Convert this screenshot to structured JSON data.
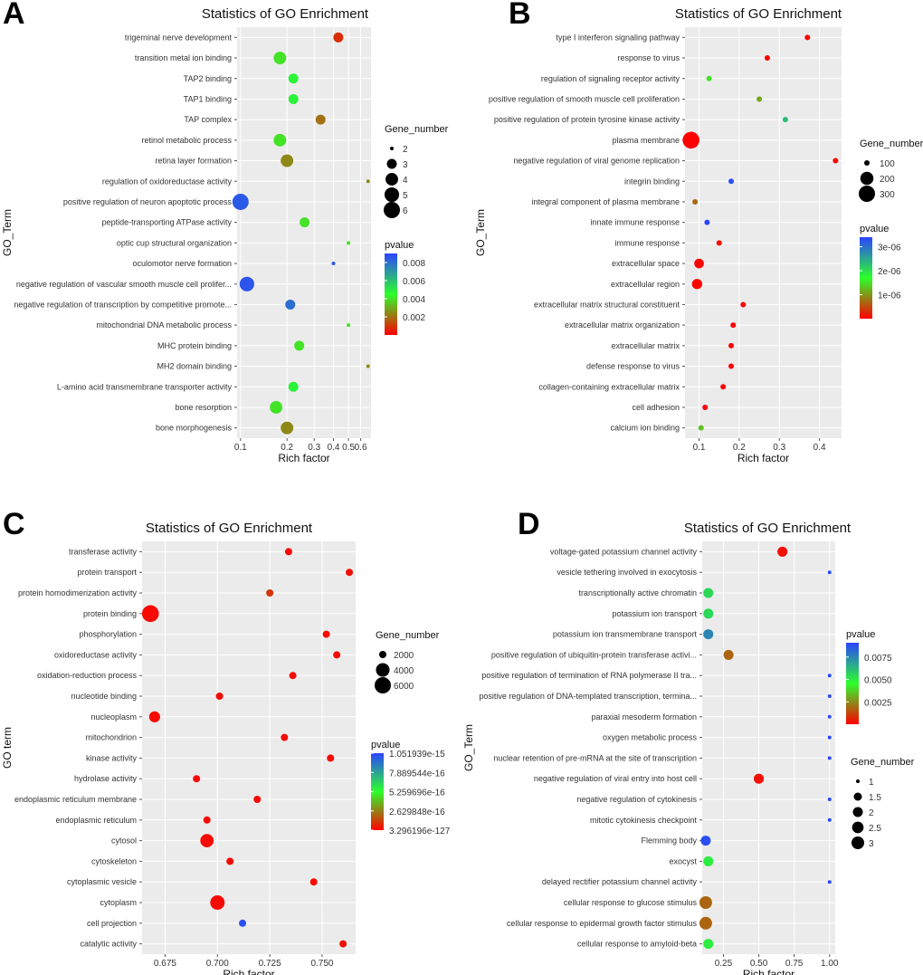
{
  "colors": {
    "panel_bg": "#ebebeb",
    "grid": "#ffffff",
    "low_p": "#ff0000",
    "mid_p": "#2bff2b",
    "high_p": "#2b44ff"
  },
  "chart_data": [
    {
      "type": "scatter",
      "panel": "A",
      "title": "Statistics of GO Enrichment",
      "xlabel": "Rich factor",
      "ylabel": "GO_Term",
      "xscale": "log",
      "xlim": [
        0.095,
        0.7
      ],
      "xticks": [
        "0.1",
        "0.2",
        "0.3",
        "0.4",
        "0.5",
        "0.6"
      ],
      "xtick_values": [
        0.1,
        0.2,
        0.3,
        0.4,
        0.5,
        0.6
      ],
      "size_legend_title": "Gene_number",
      "size_legend": [
        2,
        3,
        4,
        5,
        6
      ],
      "color_legend_title": "pvalue",
      "color_legend_labels": [
        "0.008",
        "0.006",
        "0.004",
        "0.002"
      ],
      "color_legend_values": [
        0.008,
        0.006,
        0.004,
        0.002
      ],
      "color_range": [
        0.0,
        0.009
      ],
      "terms": [
        "trigeminal nerve development",
        "transition metal ion binding",
        "TAP2 binding",
        "TAP1 binding",
        "TAP complex",
        "retinol metabolic process",
        "retina layer formation",
        "regulation of oxidoreductase activity",
        "positive regulation of neuron apoptotic process",
        "peptide-transporting ATPase activity",
        "optic cup structural organization",
        "oculomotor nerve formation",
        "negative regulation of vascular smooth muscle cell prolifer...",
        "negative regulation of transcription by competitive promote...",
        "mitochondrial DNA metabolic process",
        "MHC protein binding",
        "MH2 domain binding",
        "L-amino acid transmembrane transporter activity",
        "bone resorption",
        "bone morphogenesis"
      ],
      "x": [
        0.43,
        0.18,
        0.22,
        0.22,
        0.33,
        0.18,
        0.2,
        0.67,
        0.1,
        0.26,
        0.5,
        0.4,
        0.11,
        0.21,
        0.5,
        0.24,
        0.67,
        0.22,
        0.17,
        0.2
      ],
      "gene_number": [
        3,
        4,
        3,
        3,
        3,
        4,
        4,
        1,
        6,
        3,
        1,
        1,
        5,
        3,
        1,
        3,
        1,
        3,
        4,
        4
      ],
      "pvalue": [
        0.0008,
        0.004,
        0.0048,
        0.0048,
        0.002,
        0.004,
        0.0024,
        0.0024,
        0.0085,
        0.004,
        0.004,
        0.0085,
        0.0086,
        0.008,
        0.004,
        0.004,
        0.0024,
        0.0048,
        0.004,
        0.0024
      ]
    },
    {
      "type": "scatter",
      "panel": "B",
      "title": "Statistics of GO Enrichment",
      "xlabel": "Rich factor",
      "ylabel": "GO_Term",
      "xscale": "linear",
      "xlim": [
        0.065,
        0.455
      ],
      "xticks": [
        "0.1",
        "0.2",
        "0.3",
        "0.4"
      ],
      "xtick_values": [
        0.1,
        0.2,
        0.3,
        0.4
      ],
      "size_legend_title": "Gene_number",
      "size_legend": [
        100,
        200,
        300
      ],
      "color_legend_title": "pvalue",
      "color_legend_labels": [
        "3e-06",
        "2e-06",
        "1e-06"
      ],
      "color_legend_values": [
        3e-06,
        2e-06,
        1e-06
      ],
      "color_range": [
        0.0,
        3.4e-06
      ],
      "terms": [
        "type I interferon signaling pathway",
        "response to virus",
        "regulation of signaling receptor activity",
        "positive regulation of smooth muscle cell proliferation",
        "positive regulation of protein tyrosine kinase activity",
        "plasma membrane",
        "negative regulation of viral genome replication",
        "integrin binding",
        "integral component of plasma membrane",
        "innate immune response",
        "immune response",
        "extracellular space",
        "extracellular region",
        "extracellular matrix structural constituent",
        "extracellular matrix organization",
        "extracellular matrix",
        "defense response to virus",
        "collagen-containing extracellular matrix",
        "cell adhesion",
        "calcium ion binding"
      ],
      "x": [
        0.37,
        0.27,
        0.125,
        0.25,
        0.315,
        0.08,
        0.44,
        0.18,
        0.09,
        0.12,
        0.15,
        0.1,
        0.095,
        0.21,
        0.185,
        0.18,
        0.18,
        0.16,
        0.115,
        0.105
      ],
      "gene_number": [
        30,
        40,
        40,
        25,
        20,
        320,
        25,
        40,
        100,
        60,
        50,
        130,
        140,
        40,
        60,
        50,
        40,
        60,
        60,
        70
      ],
      "pvalue": [
        1e-08,
        1e-08,
        1.5e-06,
        1.1e-06,
        2.3e-06,
        1e-08,
        1e-08,
        3.3e-06,
        7e-07,
        3.4e-06,
        1e-08,
        1e-08,
        1e-08,
        1e-08,
        1e-08,
        1e-08,
        1e-08,
        1e-08,
        1e-08,
        1.3e-06
      ]
    },
    {
      "type": "scatter",
      "panel": "C",
      "title": "Statistics of GO Enrichment",
      "xlabel": "Rich factor",
      "ylabel": "GO term",
      "xscale": "linear",
      "xlim": [
        0.664,
        0.766
      ],
      "xticks": [
        "0.675",
        "0.700",
        "0.725",
        "0.750"
      ],
      "xtick_values": [
        0.675,
        0.7,
        0.725,
        0.75
      ],
      "size_legend_title": "Gene_number",
      "size_legend": [
        2000,
        4000,
        6000
      ],
      "color_legend_title": "pvalue",
      "color_legend_labels": [
        "1.051939e-15",
        "7.889544e-16",
        "5.259696e-16",
        "2.629848e-16",
        "3.296196e-127"
      ],
      "color_legend_values": [
        1.0,
        0.75,
        0.5,
        0.25,
        0.0
      ],
      "color_range": [
        0.0,
        1.0
      ],
      "terms": [
        "transferase activity",
        "protein transport",
        "protein homodimerization activity",
        "protein binding",
        "phosphorylation",
        "oxidoreductase activity",
        "oxidation-reduction process",
        "nucleotide binding",
        "nucleoplasm",
        "mitochondrion",
        "kinase activity",
        "hydrolase activity",
        "endoplasmic reticulum membrane",
        "endoplasmic reticulum",
        "cytosol",
        "cytoskeleton",
        "cytoplasmic vesicle",
        "cytoplasm",
        "cell projection",
        "catalytic activity"
      ],
      "x": [
        0.734,
        0.763,
        0.725,
        0.668,
        0.752,
        0.757,
        0.736,
        0.701,
        0.67,
        0.732,
        0.754,
        0.69,
        0.719,
        0.695,
        0.695,
        0.706,
        0.746,
        0.7,
        0.712,
        0.76
      ],
      "gene_number": [
        1600,
        900,
        900,
        6500,
        900,
        700,
        900,
        1600,
        2700,
        1600,
        800,
        1600,
        1100,
        1400,
        3800,
        1200,
        800,
        4500,
        900,
        500
      ],
      "pvalue": [
        0.02,
        0.03,
        0.1,
        0.02,
        0.02,
        0.02,
        0.02,
        0.02,
        0.02,
        0.02,
        0.02,
        0.02,
        0.02,
        0.02,
        0.02,
        0.02,
        0.02,
        0.02,
        0.97,
        0.02
      ]
    },
    {
      "type": "scatter",
      "panel": "D",
      "title": "Statistics of GO Enrichment",
      "xlabel": "Rich factor",
      "ylabel": "GO_Term",
      "xscale": "linear",
      "xlim": [
        0.1,
        1.04
      ],
      "xticks": [
        "0.25",
        "0.50",
        "0.75",
        "1.00"
      ],
      "xtick_values": [
        0.25,
        0.5,
        0.75,
        1.0
      ],
      "size_legend_title": "Gene_number",
      "size_legend": [
        1.0,
        1.5,
        2.0,
        2.5,
        3.0
      ],
      "color_legend_title": "pvalue",
      "color_legend_labels": [
        "0.0075",
        "0.0050",
        "0.0025"
      ],
      "color_legend_values": [
        0.0075,
        0.005,
        0.0025
      ],
      "color_range": [
        0.0,
        0.0091
      ],
      "terms": [
        "voltage-gated potassium channel activity",
        "vesicle tethering involved in exocytosis",
        "transcriptionally active chromatin",
        "potassium ion transport",
        "potassium ion transmembrane transport",
        "positive regulation of ubiquitin-protein transferase activi...",
        "positive regulation of termination of RNA polymerase II tra...",
        "positive regulation of DNA-templated transcription, termina...",
        "paraxial mesoderm formation",
        "oxygen metabolic process",
        "nuclear retention of pre-mRNA at the site of transcription",
        "negative regulation of viral entry into host cell",
        "negative regulation of cytokinesis",
        "mitotic cytokinesis checkpoint",
        "Flemming body",
        "exocyst",
        "delayed rectifier potassium channel activity",
        "cellular response to glucose stimulus",
        "cellular response to epidermal growth factor stimulus",
        "cellular response to amyloid-beta"
      ],
      "x": [
        0.667,
        1.0,
        0.143,
        0.143,
        0.143,
        0.286,
        1.0,
        1.0,
        1.0,
        1.0,
        1.0,
        0.5,
        1.0,
        1.0,
        0.125,
        0.143,
        1.0,
        0.125,
        0.125,
        0.143
      ],
      "gene_number": [
        2,
        1,
        2,
        2,
        2,
        2,
        1,
        1,
        1,
        1,
        1,
        2,
        1,
        1,
        2,
        2,
        1,
        3,
        3,
        2
      ],
      "pvalue": [
        0.0003,
        0.009,
        0.0055,
        0.0055,
        0.0075,
        0.0018,
        0.009,
        0.009,
        0.009,
        0.009,
        0.009,
        0.0003,
        0.009,
        0.009,
        0.0088,
        0.005,
        0.009,
        0.0018,
        0.0018,
        0.005
      ]
    }
  ]
}
